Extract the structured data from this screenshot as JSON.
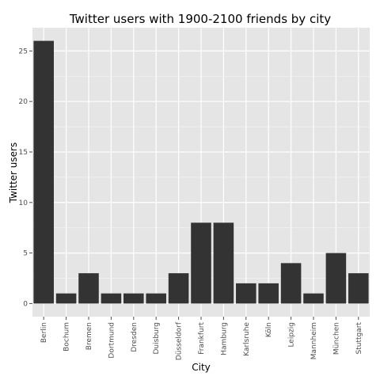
{
  "chart_data": {
    "type": "bar",
    "title": "Twitter users with 1900-2100 friends by city",
    "xlabel": "City",
    "ylabel": "Twitter users",
    "categories": [
      "Berlin",
      "Bochum",
      "Bremen",
      "Dortmund",
      "Dresden",
      "Duisburg",
      "Düsseldorf",
      "Frankfurt",
      "Hamburg",
      "Karlsruhe",
      "Köln",
      "Leipzig",
      "Mannheim",
      "München",
      "Stuttgart"
    ],
    "values": [
      26,
      1,
      3,
      1,
      1,
      1,
      3,
      8,
      8,
      2,
      2,
      4,
      1,
      5,
      3
    ],
    "ylim": [
      -1.3,
      27.3
    ],
    "yticks": [
      "0",
      "5",
      "10",
      "15",
      "20",
      "25"
    ],
    "grid": true,
    "colors": {
      "bar": "#333333",
      "panel": "#e5e5e5",
      "grid_major": "#ffffff",
      "grid_minor": "#f2f2f2"
    }
  }
}
